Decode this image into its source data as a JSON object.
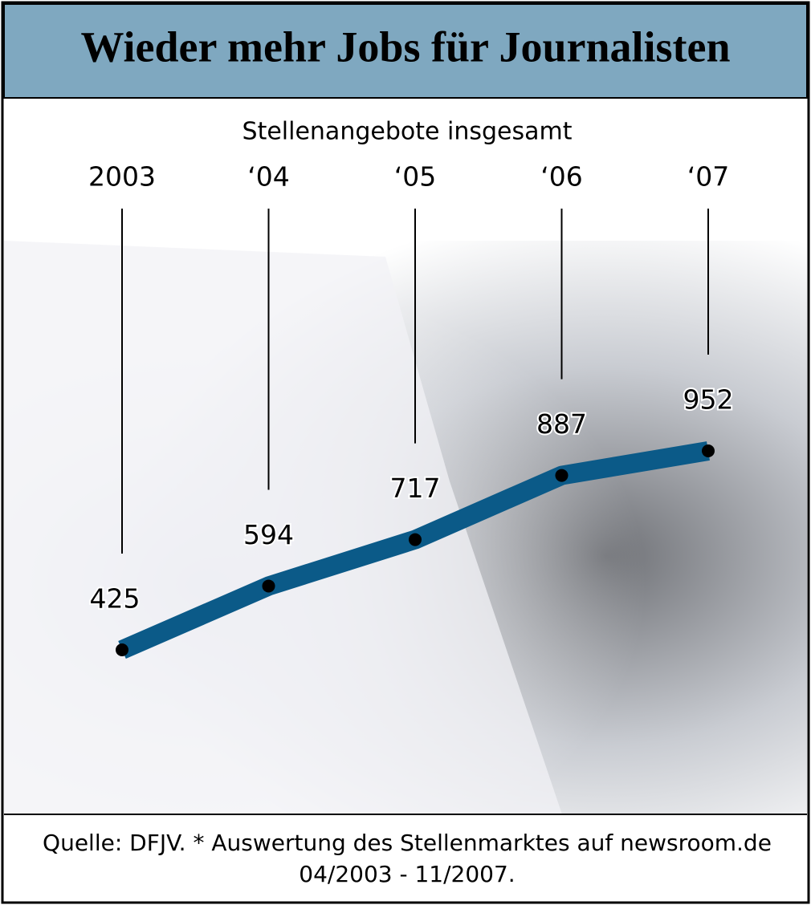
{
  "chart_data": {
    "type": "line",
    "title": "Wieder mehr Jobs für Journalisten",
    "subtitle": "Stellenangebote insgesamt",
    "categories": [
      "2003",
      "‘04",
      "‘05",
      "‘06",
      "‘07"
    ],
    "values": [
      425,
      594,
      717,
      887,
      952
    ],
    "color": "#0b5a88",
    "notes": [
      "Quelle: DFJV. * Auswertung des Stellenmarktes auf newsroom.de",
      "04/2003 - 11/2007."
    ]
  }
}
